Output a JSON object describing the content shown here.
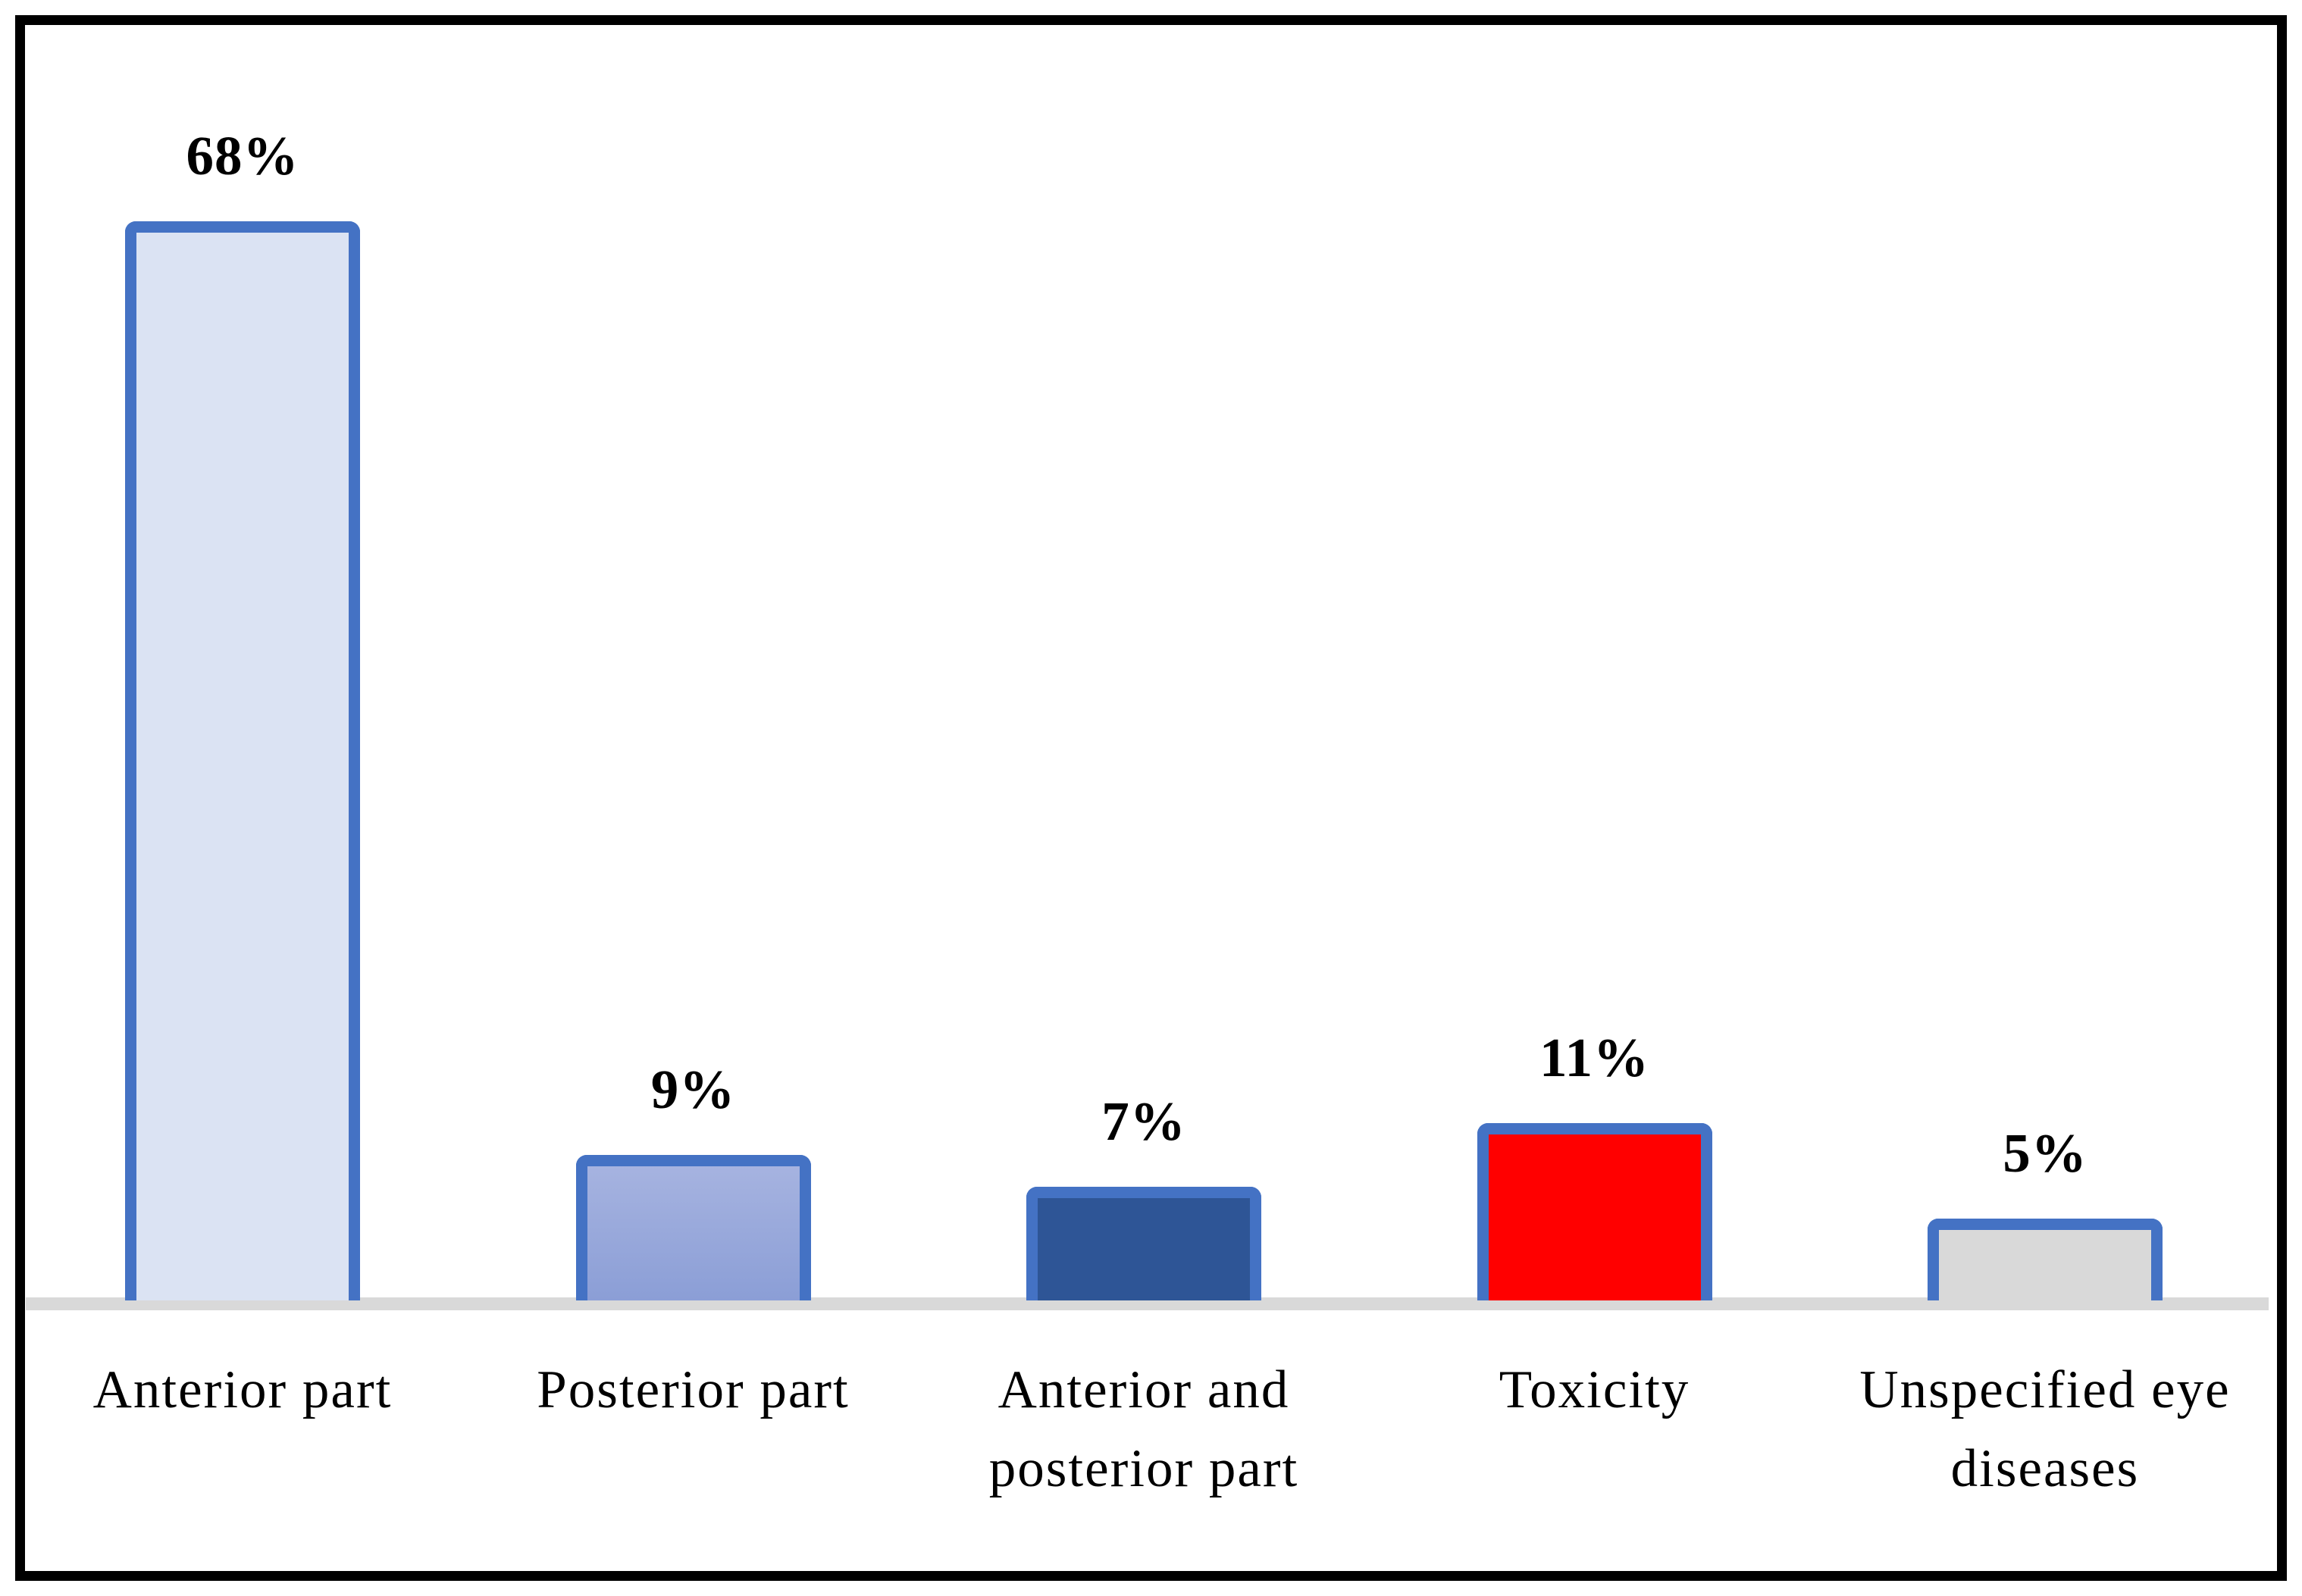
{
  "chart_data": {
    "type": "bar",
    "title": "",
    "xlabel": "",
    "ylabel": "",
    "categories": [
      "Anterior part",
      "Posterior part",
      "Anterior and posterior part",
      "Toxicity",
      "Unspecified eye diseases"
    ],
    "values": [
      68,
      9,
      7,
      11,
      5
    ],
    "value_labels": [
      "68%",
      "9%",
      "7%",
      "11%",
      "5%"
    ],
    "ylim": [
      0,
      72
    ],
    "grid": false,
    "legend": false,
    "bars": [
      {
        "category": "Anterior part",
        "value": 68,
        "label": "68%",
        "fill": "#DBE3F3"
      },
      {
        "category": "Posterior part",
        "value": 9,
        "label": "9%",
        "fill": [
          "#A6B3E0",
          "#8B9ED6"
        ]
      },
      {
        "category": "Anterior and posterior part",
        "value": 7,
        "label": "7%",
        "fill": "#2E5596"
      },
      {
        "category": "Toxicity",
        "value": 11,
        "label": "11%",
        "fill": "#FF0000"
      },
      {
        "category": "Unspecified eye diseases",
        "value": 5,
        "label": "5%",
        "fill": "#D9D9D9"
      }
    ],
    "bar_border_color": "#4472C4",
    "baseline_color": "#D9D9D9",
    "frame_border_color": "#000000",
    "background_color": "#FFFFFF",
    "label_text_color": "#000000"
  }
}
